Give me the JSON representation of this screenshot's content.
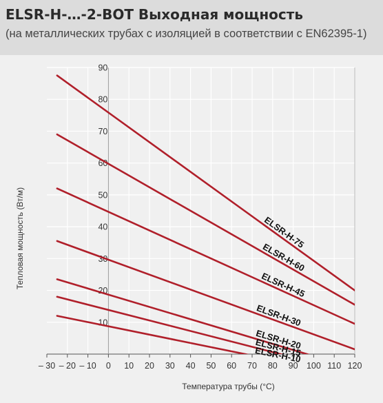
{
  "header": {
    "title": "ELSR-H-…-2-BOT Выходная мощность",
    "subtitle": "(на металлических трубах с изоляцией в соответствии с EN62395-1)"
  },
  "colors": {
    "header_bg": "#dcdcdc",
    "panel_bg": "#f0f0f0",
    "line": "#b01f2a",
    "grid": "#ffffff"
  },
  "chart_data": {
    "type": "line",
    "xlabel": "Температура трубы (°C)",
    "ylabel": "Тепловая мощность (Вт/м)",
    "xlim": [
      -30,
      120
    ],
    "ylim": [
      0,
      90
    ],
    "x_ticks": [
      -30,
      -20,
      -10,
      0,
      10,
      20,
      30,
      40,
      50,
      60,
      70,
      80,
      90,
      100,
      110,
      120
    ],
    "x_tick_labels": [
      "– 30",
      "– 20",
      "– 10",
      "0",
      "10",
      "20",
      "30",
      "40",
      "50",
      "60",
      "70",
      "80",
      "90",
      "100",
      "110",
      "120"
    ],
    "y_ticks": [
      10,
      20,
      30,
      40,
      50,
      60,
      70,
      80,
      90
    ],
    "y_tick_labels": [
      "10",
      "20",
      "30",
      "40",
      "50",
      "60",
      "70",
      "80",
      "90"
    ],
    "grid": true,
    "series": [
      {
        "name": "ELSR-H-75",
        "x": [
          -25,
          120
        ],
        "y": [
          87.5,
          20.0
        ]
      },
      {
        "name": "ELSR-H-60",
        "x": [
          -25,
          120
        ],
        "y": [
          69.0,
          15.5
        ]
      },
      {
        "name": "ELSR-H-45",
        "x": [
          -25,
          120
        ],
        "y": [
          52.0,
          9.5
        ]
      },
      {
        "name": "ELSR-H-30",
        "x": [
          -25,
          120
        ],
        "y": [
          35.5,
          1.5
        ]
      },
      {
        "name": "ELSR-H-20",
        "x": [
          -25,
          120
        ],
        "y": [
          23.5,
          -4.5
        ]
      },
      {
        "name": "ELSR-H-15",
        "x": [
          -25,
          120
        ],
        "y": [
          18.0,
          -6.0
        ]
      },
      {
        "name": "ELSR-H-10",
        "x": [
          -25,
          120
        ],
        "y": [
          12.0,
          -7.0
        ]
      }
    ]
  }
}
